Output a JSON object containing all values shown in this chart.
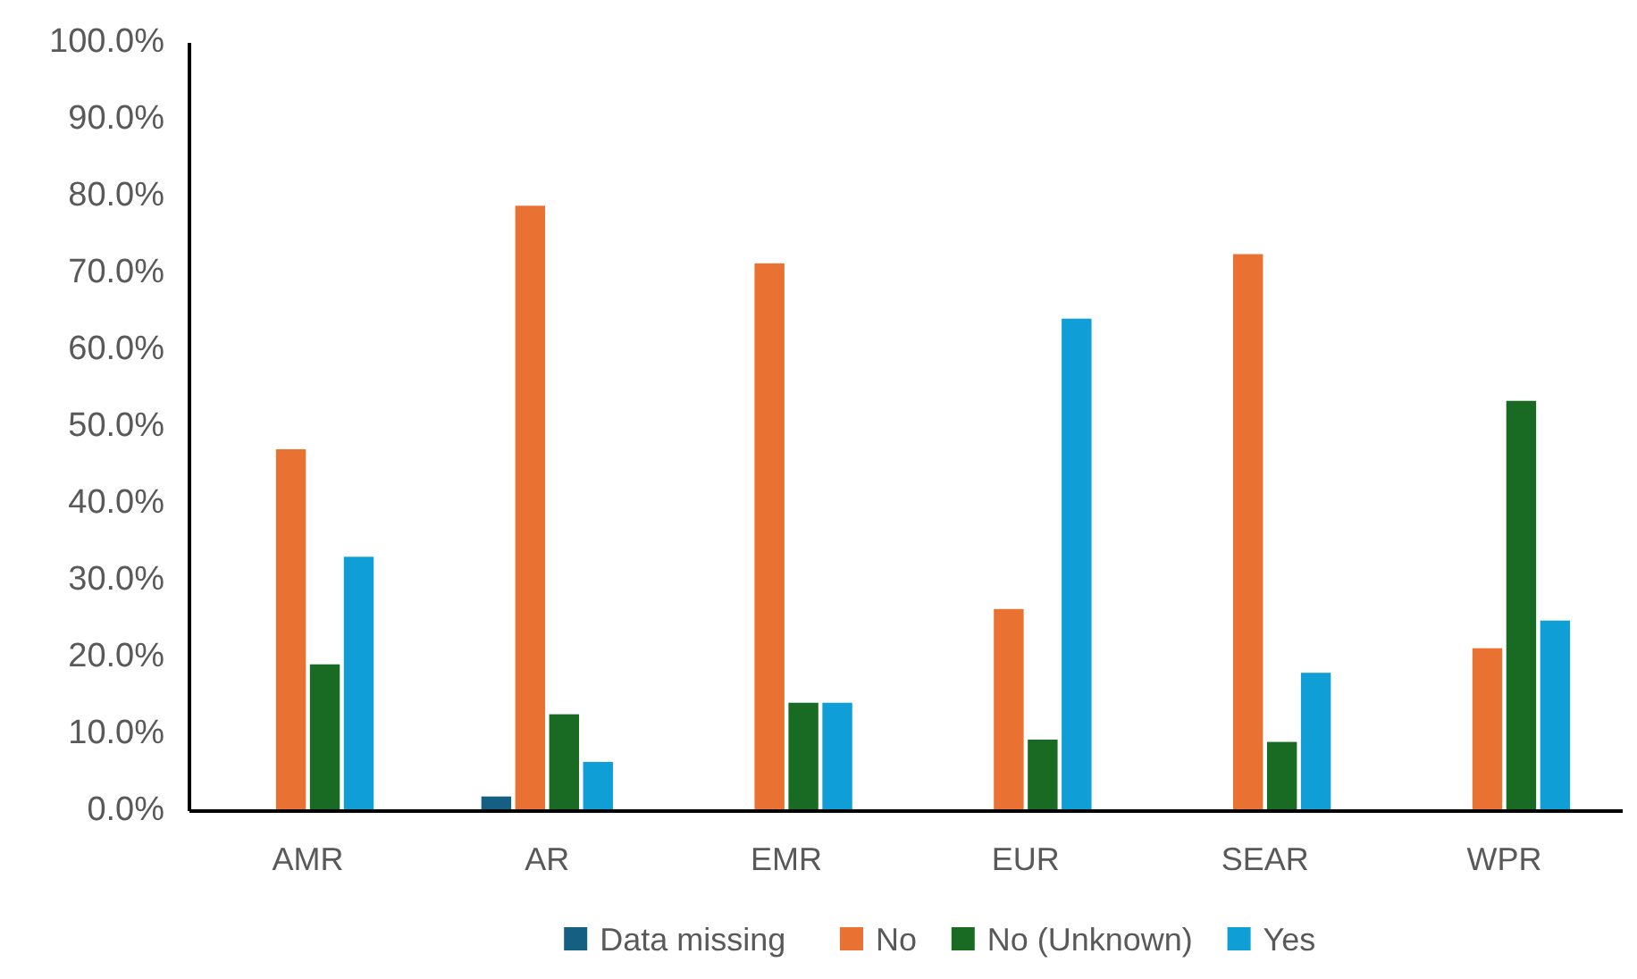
{
  "chart_data": {
    "type": "bar",
    "categories": [
      "AMR",
      "AR",
      "EMR",
      "EUR",
      "SEAR",
      "WPR"
    ],
    "series": [
      {
        "name": "Data missing",
        "color": "#156082",
        "values": [
          0,
          1.9,
          0,
          0,
          0,
          0
        ]
      },
      {
        "name": "No",
        "color": "#e97132",
        "values": [
          47.1,
          78.8,
          71.3,
          26.3,
          72.5,
          21.2
        ]
      },
      {
        "name": "No (Unknown)",
        "color": "#196b24",
        "values": [
          19.1,
          12.6,
          14.1,
          9.3,
          9.0,
          53.4
        ]
      },
      {
        "name": "Yes",
        "color": "#0f9ed5",
        "values": [
          33.1,
          6.4,
          14.1,
          64.1,
          18.0,
          24.8
        ]
      }
    ],
    "ylim": [
      0,
      100
    ],
    "yticks": [
      {
        "value": 0,
        "label": "0.0%"
      },
      {
        "value": 10,
        "label": "10.0%"
      },
      {
        "value": 20,
        "label": "20.0%"
      },
      {
        "value": 30,
        "label": "30.0%"
      },
      {
        "value": 40,
        "label": "40.0%"
      },
      {
        "value": 50,
        "label": "50.0%"
      },
      {
        "value": 60,
        "label": "60.0%"
      },
      {
        "value": 70,
        "label": "70.0%"
      },
      {
        "value": 80,
        "label": "80.0%"
      },
      {
        "value": 90,
        "label": "90.0%"
      },
      {
        "value": 100,
        "label": "100.0%"
      }
    ],
    "grid": false,
    "legend": "bottom"
  }
}
